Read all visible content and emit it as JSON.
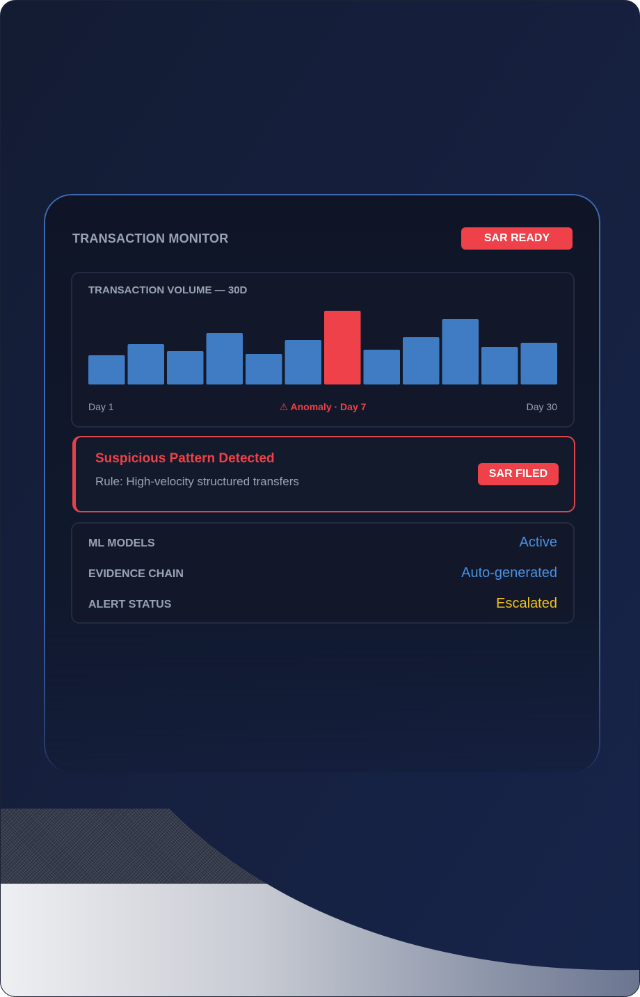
{
  "monitor": {
    "title": "TRANSACTION MONITOR",
    "status_badge": "SAR READY"
  },
  "chart_data": {
    "type": "bar",
    "title": "TRANSACTION VOLUME — 30D",
    "values": [
      42,
      58,
      48,
      74,
      44,
      64,
      106,
      50,
      68,
      94,
      54,
      60
    ],
    "highlight_index": 6,
    "colors": {
      "normal": "#3f7cc4",
      "anomaly": "#ef4149"
    },
    "x_start_label": "Day 1",
    "x_end_label": "Day 30",
    "annotation": "⚠ Anomaly · Day 7"
  },
  "alert": {
    "title": "Suspicious Pattern Detected",
    "rule": "Rule: High-velocity structured transfers",
    "badge": "SAR FILED"
  },
  "stats": [
    {
      "key": "ML MODELS",
      "value": "Active",
      "color": "#4a90e2"
    },
    {
      "key": "EVIDENCE CHAIN",
      "value": "Auto-generated",
      "color": "#4a90e2"
    },
    {
      "key": "ALERT STATUS",
      "value": "Escalated",
      "color": "#f5c518"
    }
  ]
}
